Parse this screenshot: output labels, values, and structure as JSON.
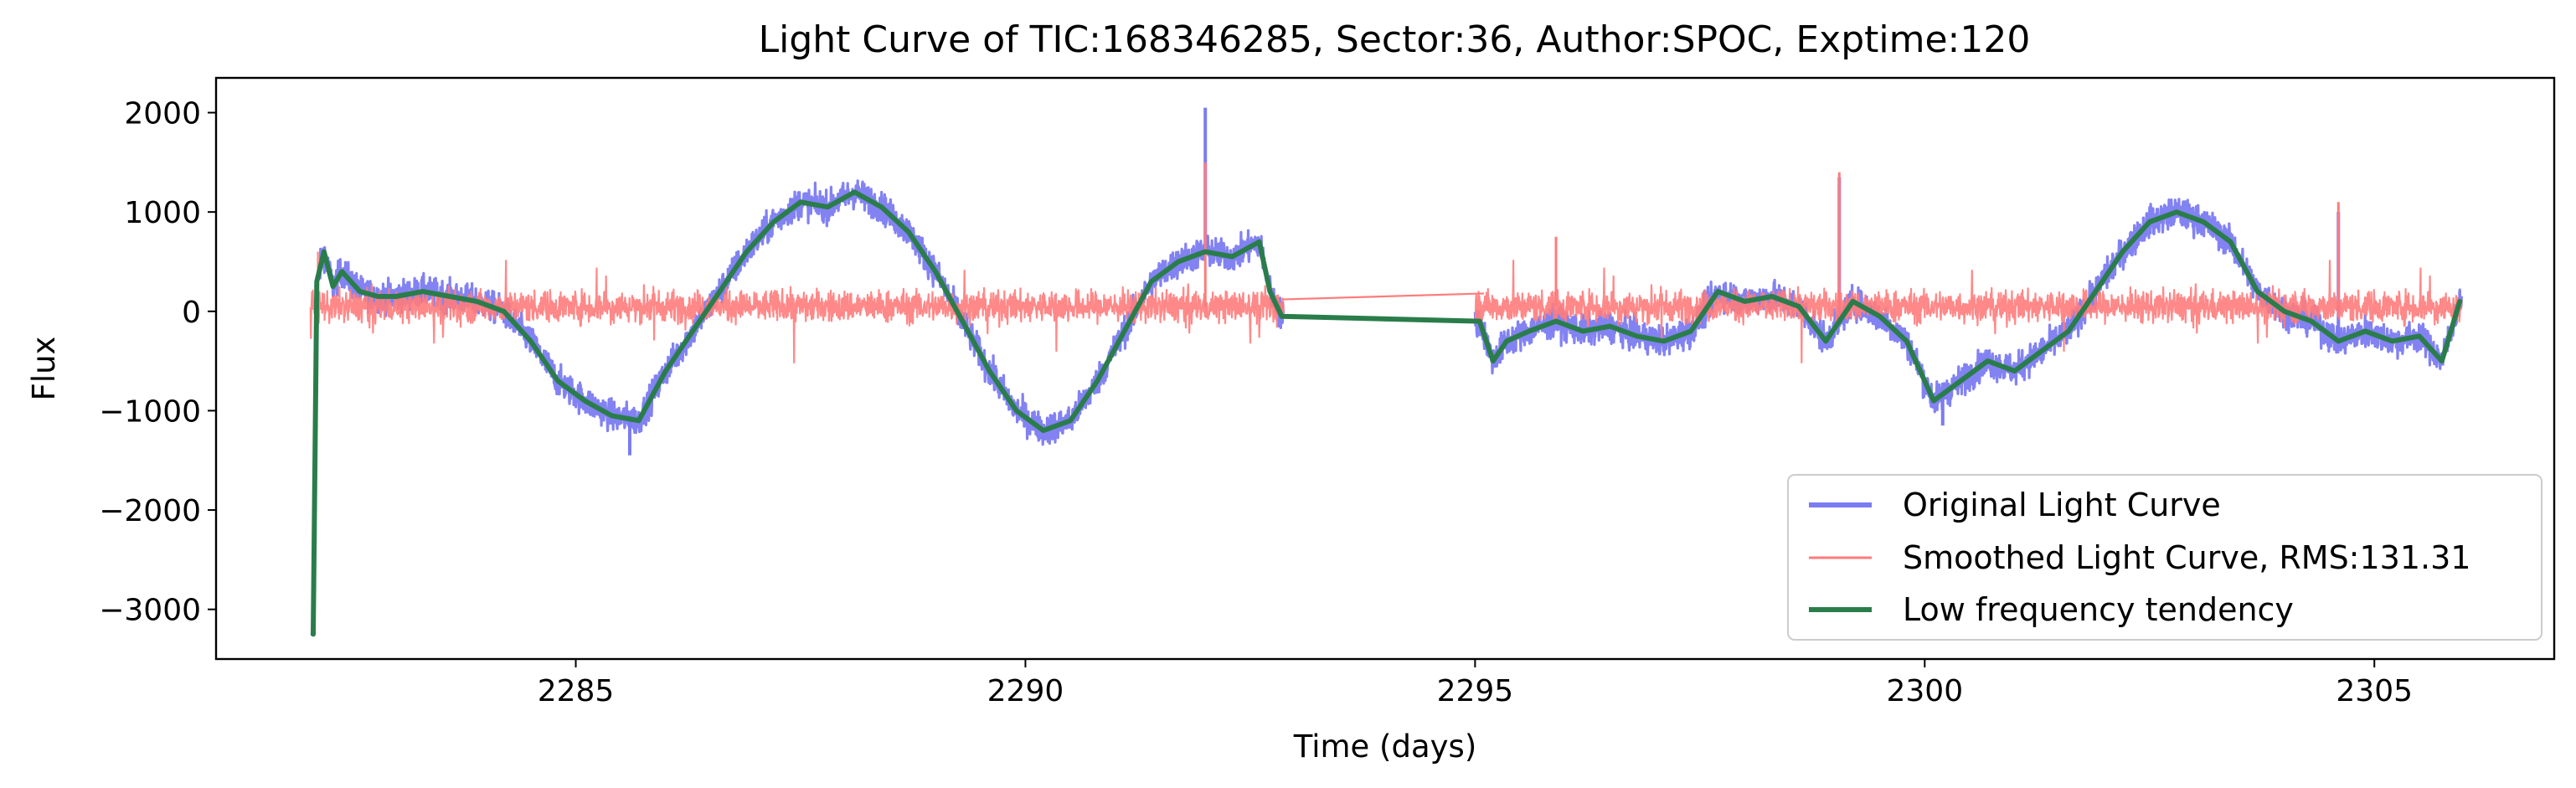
{
  "chart_data": {
    "type": "line",
    "title": "Light Curve of TIC:168346285, Sector:36, Author:SPOC, Exptime:120",
    "xlabel": "Time (days)",
    "ylabel": "Flux",
    "xlim": [
      2281.0,
      2307.0
    ],
    "ylim": [
      -3500,
      2350
    ],
    "xticks": [
      2285,
      2290,
      2295,
      2300,
      2305
    ],
    "yticks": [
      2000,
      1000,
      0,
      -1000,
      -2000,
      -3000
    ],
    "xtick_labels": [
      "2285",
      "2290",
      "2295",
      "2300",
      "2305"
    ],
    "ytick_labels": [
      "2000",
      "1000",
      "0",
      "−1000",
      "−2000",
      "−3000"
    ],
    "legend_position": "lower right",
    "legend": [
      "Original Light Curve",
      "Smoothed Light Curve, RMS:131.31",
      "Low frequency tendency"
    ],
    "colors": {
      "original": "#7b7bf2",
      "smoothed": "#ff7b7b",
      "trend": "#2a7d4a"
    },
    "series": [
      {
        "name": "Low frequency tendency",
        "x": [
          2282.08,
          2282.12,
          2282.2,
          2282.3,
          2282.4,
          2282.6,
          2282.8,
          2283.0,
          2283.3,
          2283.6,
          2283.9,
          2284.2,
          2284.5,
          2284.8,
          2285.1,
          2285.4,
          2285.7,
          2286.0,
          2286.3,
          2286.6,
          2286.9,
          2287.2,
          2287.5,
          2287.8,
          2288.1,
          2288.4,
          2288.7,
          2289.0,
          2289.3,
          2289.6,
          2289.9,
          2290.2,
          2290.5,
          2290.8,
          2291.1,
          2291.4,
          2291.7,
          2292.0,
          2292.3,
          2292.6,
          2292.72,
          2292.85,
          2295.05,
          2295.2,
          2295.35,
          2295.6,
          2295.9,
          2296.2,
          2296.5,
          2296.8,
          2297.1,
          2297.4,
          2297.7,
          2298.0,
          2298.3,
          2298.6,
          2298.9,
          2299.2,
          2299.5,
          2299.8,
          2300.1,
          2300.4,
          2300.7,
          2301.0,
          2301.3,
          2301.6,
          2301.9,
          2302.2,
          2302.5,
          2302.8,
          2303.1,
          2303.4,
          2303.7,
          2304.0,
          2304.3,
          2304.6,
          2304.9,
          2305.2,
          2305.5,
          2305.75,
          2305.95
        ],
        "y": [
          -3250,
          300,
          600,
          250,
          400,
          200,
          150,
          150,
          200,
          150,
          100,
          0,
          -300,
          -700,
          -900,
          -1050,
          -1100,
          -600,
          -200,
          200,
          600,
          900,
          1100,
          1050,
          1200,
          1050,
          800,
          400,
          -100,
          -600,
          -1000,
          -1200,
          -1100,
          -700,
          -200,
          300,
          500,
          600,
          550,
          700,
          200,
          -50,
          -100,
          -500,
          -300,
          -200,
          -100,
          -200,
          -150,
          -250,
          -300,
          -200,
          200,
          100,
          150,
          50,
          -300,
          100,
          -50,
          -300,
          -900,
          -700,
          -500,
          -600,
          -400,
          -200,
          200,
          600,
          900,
          1000,
          900,
          700,
          200,
          0,
          -100,
          -300,
          -200,
          -300,
          -250,
          -500,
          100
        ]
      },
      {
        "name": "Original Light Curve",
        "note_series_is_trend_plus_noise": false,
        "x_from": 2282.05,
        "x_to": 2305.97,
        "gap": [
          2292.87,
          2295.0
        ],
        "noise_amplitude": 180
      },
      {
        "name": "Smoothed Light Curve, RMS:131.31",
        "x_from": 2282.05,
        "x_to": 2305.97,
        "center": 50,
        "rms": 131.31,
        "bridge": [
          [
            2292.85,
            120
          ],
          [
            2295.1,
            180
          ]
        ]
      }
    ]
  }
}
